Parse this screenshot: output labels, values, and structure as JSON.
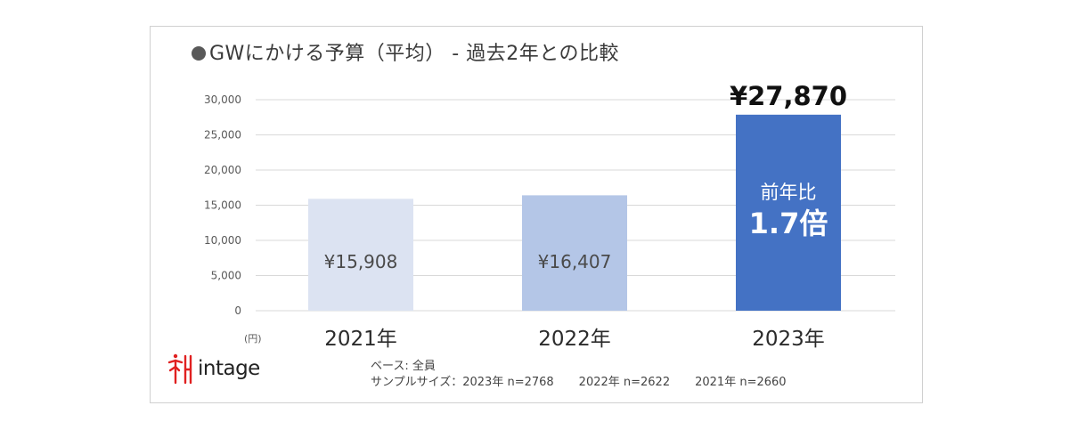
{
  "title": "GWにかける予算（平均） - 過去2年との比較",
  "unit_label": "(円)",
  "logo_text": "intage",
  "notes": {
    "base": "ベース: 全員",
    "sample_prefix": "サンプルサイズ：",
    "samples": [
      "2023年 n=2768",
      "2022年 n=2622",
      "2021年 n=2660"
    ]
  },
  "colors": {
    "bar_2021": "#dce3f2",
    "bar_2022": "#b4c6e7",
    "bar_2023": "#4472c4",
    "grid": "#d9d9d9",
    "logo": "#e02020"
  },
  "chart_data": {
    "type": "bar",
    "categories": [
      "2021年",
      "2022年",
      "2023年"
    ],
    "values": [
      15908,
      16407,
      27870
    ],
    "data_labels": [
      "¥15,908",
      "¥16,407",
      "¥27,870"
    ],
    "ylim": [
      0,
      30000
    ],
    "yticks": [
      0,
      5000,
      10000,
      15000,
      20000,
      25000,
      30000
    ],
    "ytick_labels": [
      "0",
      "5,000",
      "10,000",
      "15,000",
      "20,000",
      "25,000",
      "30,000"
    ],
    "grid": true,
    "annotation": {
      "line1": "前年比",
      "line2": "1.7倍"
    }
  }
}
